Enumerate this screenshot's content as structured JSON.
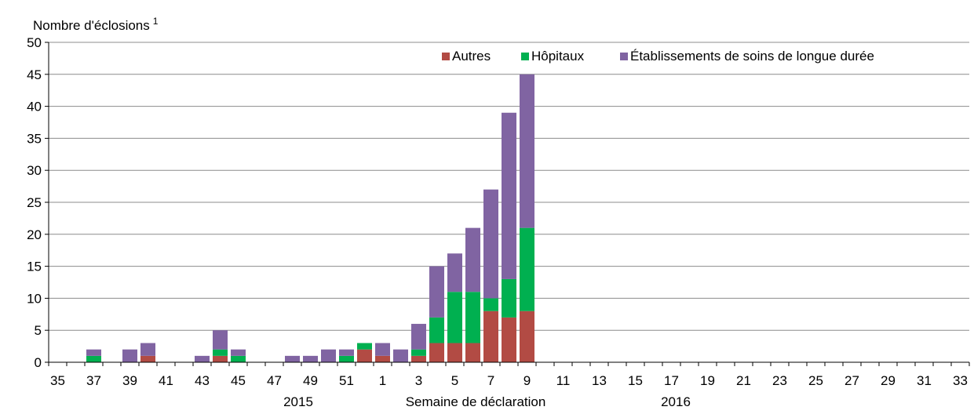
{
  "chart_data": {
    "type": "bar",
    "stacked": true,
    "ylabel": "Nombre d'éclosions",
    "ylabel_superscript": "1",
    "xlabel": "Semaine de déclaration",
    "year_labels": [
      "2015",
      "2016"
    ],
    "ylim": [
      0,
      50
    ],
    "yticks": [
      "0",
      "5",
      "10",
      "15",
      "20",
      "25",
      "30",
      "35",
      "40",
      "45",
      "50"
    ],
    "grid": true,
    "legend_position": "top-right",
    "categories": [
      "35",
      "36",
      "37",
      "38",
      "39",
      "40",
      "41",
      "42",
      "43",
      "44",
      "45",
      "46",
      "47",
      "48",
      "49",
      "50",
      "51",
      "52",
      "1",
      "2",
      "3",
      "4",
      "5",
      "6",
      "7",
      "8",
      "9",
      "10",
      "11",
      "12",
      "13",
      "14",
      "15",
      "16",
      "17",
      "18",
      "19",
      "20",
      "21",
      "22",
      "23",
      "24",
      "25",
      "26",
      "27",
      "28",
      "29",
      "30",
      "31",
      "32",
      "33"
    ],
    "x_tick_labels": [
      "35",
      "37",
      "39",
      "41",
      "43",
      "45",
      "47",
      "49",
      "51",
      "1",
      "3",
      "5",
      "7",
      "9",
      "11",
      "13",
      "15",
      "17",
      "19",
      "21",
      "23",
      "25",
      "27",
      "29",
      "31",
      "33"
    ],
    "series": [
      {
        "name": "Autres",
        "color": "#B24B44",
        "values": [
          0,
          0,
          0,
          0,
          0,
          1,
          0,
          0,
          0,
          1,
          0,
          0,
          0,
          0,
          0,
          0,
          0,
          2,
          1,
          0,
          1,
          3,
          3,
          3,
          8,
          7,
          8,
          0,
          0,
          0,
          0,
          0,
          0,
          0,
          0,
          0,
          0,
          0,
          0,
          0,
          0,
          0,
          0,
          0,
          0,
          0,
          0,
          0,
          0,
          0,
          0
        ]
      },
      {
        "name": "Hôpitaux",
        "color": "#00B050",
        "values": [
          0,
          0,
          1,
          0,
          0,
          0,
          0,
          0,
          0,
          1,
          1,
          0,
          0,
          0,
          0,
          0,
          1,
          1,
          0,
          0,
          1,
          4,
          8,
          8,
          2,
          6,
          13,
          0,
          0,
          0,
          0,
          0,
          0,
          0,
          0,
          0,
          0,
          0,
          0,
          0,
          0,
          0,
          0,
          0,
          0,
          0,
          0,
          0,
          0,
          0,
          0
        ]
      },
      {
        "name": "Établissements de soins de longue durée",
        "color": "#8064A2",
        "values": [
          0,
          0,
          1,
          0,
          2,
          2,
          0,
          0,
          1,
          3,
          1,
          0,
          0,
          1,
          1,
          2,
          1,
          0,
          2,
          2,
          4,
          8,
          6,
          10,
          17,
          26,
          24,
          0,
          0,
          0,
          0,
          0,
          0,
          0,
          0,
          0,
          0,
          0,
          0,
          0,
          0,
          0,
          0,
          0,
          0,
          0,
          0,
          0,
          0,
          0,
          0
        ]
      }
    ]
  }
}
